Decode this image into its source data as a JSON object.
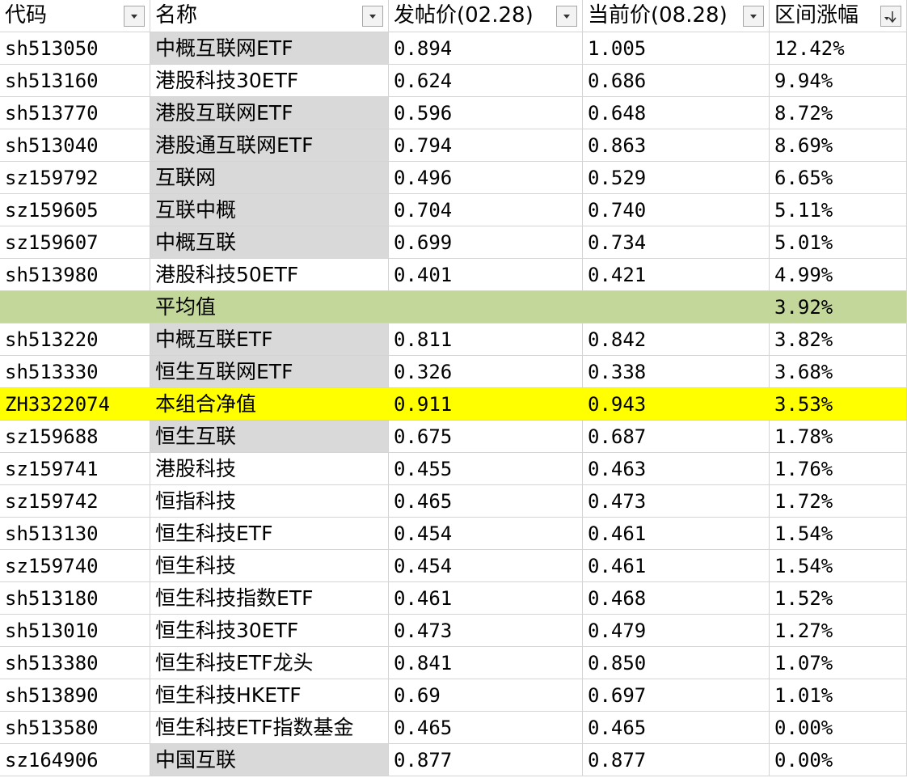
{
  "table": {
    "header": [
      "代码",
      "名称",
      "发帖价(02.28)",
      "当前价(08.28)",
      "区间涨幅"
    ],
    "rows": [
      [
        "sh513050",
        "中概互联网ETF",
        "0.894",
        "1.005",
        "12.42%"
      ],
      [
        "sh513160",
        "港股科技30ETF",
        "0.624",
        "0.686",
        "9.94%"
      ],
      [
        "sh513770",
        "港股互联网ETF",
        "0.596",
        "0.648",
        "8.72%"
      ],
      [
        "sh513040",
        "港股通互联网ETF",
        "0.794",
        "0.863",
        "8.69%"
      ],
      [
        "sz159792",
        "互联网",
        "0.496",
        "0.529",
        "6.65%"
      ],
      [
        "sz159605",
        "互联中概",
        "0.704",
        "0.740",
        "5.11%"
      ],
      [
        "sz159607",
        "中概互联",
        "0.699",
        "0.734",
        "5.01%"
      ],
      [
        "sh513980",
        "港股科技50ETF",
        "0.401",
        "0.421",
        "4.99%"
      ],
      [
        null,
        "平均值",
        null,
        null,
        "3.92%"
      ],
      [
        "sh513220",
        "中概互联ETF",
        "0.811",
        "0.842",
        "3.82%"
      ],
      [
        "sh513330",
        "恒生互联网ETF",
        "0.326",
        "0.338",
        "3.68%"
      ],
      [
        "ZH3322074",
        "本组合净值",
        "0.911",
        "0.943",
        "3.53%"
      ],
      [
        "sz159688",
        "恒生互联",
        "0.675",
        "0.687",
        "1.78%"
      ],
      [
        "sz159741",
        "港股科技",
        "0.455",
        "0.463",
        "1.76%"
      ],
      [
        "sz159742",
        "恒指科技",
        "0.465",
        "0.473",
        "1.72%"
      ],
      [
        "sh513130",
        "恒生科技ETF",
        "0.454",
        "0.461",
        "1.54%"
      ],
      [
        "sz159740",
        "恒生科技",
        "0.454",
        "0.461",
        "1.54%"
      ],
      [
        "sh513180",
        "恒生科技指数ETF",
        "0.461",
        "0.468",
        "1.52%"
      ],
      [
        "sh513010",
        "恒生科技30ETF",
        "0.473",
        "0.479",
        "1.27%"
      ],
      [
        "sh513380",
        "恒生科技ETF龙头",
        "0.841",
        "0.850",
        "1.07%"
      ],
      [
        "sh513890",
        "恒生科技HKETF",
        "0.69",
        "0.697",
        "1.01%"
      ],
      [
        "sh513580",
        "恒生科技ETF指数基金",
        "0.465",
        "0.465",
        "0.00%"
      ],
      [
        "sz164906",
        "中国互联",
        "0.877",
        "0.877",
        "0.00%"
      ]
    ]
  }
}
